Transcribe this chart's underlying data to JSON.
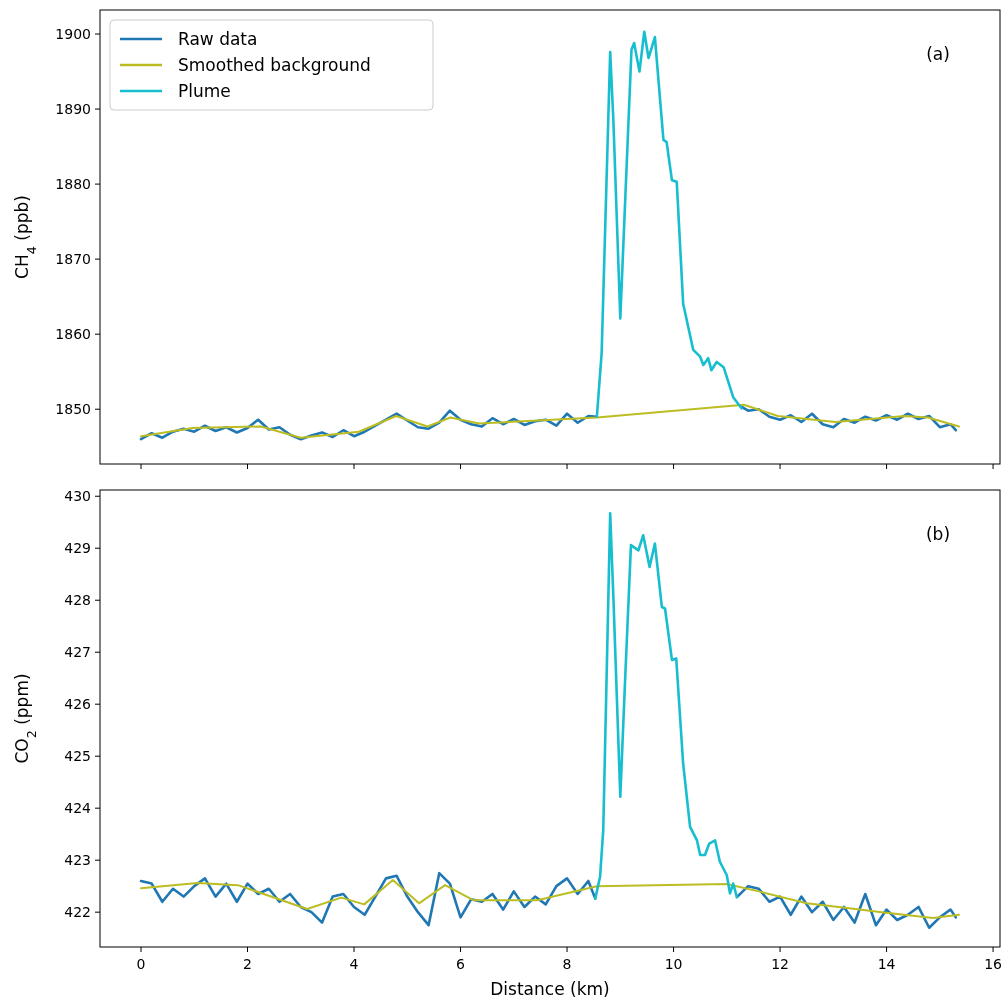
{
  "chart_data": [
    {
      "type": "line",
      "ylabel": "CH$_{4}$ (ppb)",
      "annotations": [
        "(a)"
      ],
      "xlim": [
        -0.77,
        16.13
      ],
      "xticks": [
        0,
        2,
        4,
        6,
        8,
        10,
        12,
        14,
        16
      ],
      "ylim": [
        1842.7,
        1903.2
      ],
      "yticks": [
        1850,
        1860,
        1870,
        1880,
        1890,
        1900
      ],
      "tick_labels": "y",
      "legend": "top left",
      "series": [
        {
          "name": "Raw data",
          "color": "#1f77b4",
          "x": [
            0,
            0.2,
            0.4,
            0.6,
            0.8,
            1.0,
            1.2,
            1.4,
            1.6,
            1.8,
            2.0,
            2.2,
            2.4,
            2.6,
            2.8,
            3.0,
            3.2,
            3.4,
            3.6,
            3.8,
            4.0,
            4.2,
            4.4,
            4.6,
            4.8,
            5.0,
            5.2,
            5.4,
            5.6,
            5.8,
            6.0,
            6.2,
            6.4,
            6.6,
            6.8,
            7.0,
            7.2,
            7.4,
            7.6,
            7.8,
            8.0,
            8.2,
            8.4,
            8.56,
            10,
            11.28,
            11.4,
            11.6,
            11.8,
            12.0,
            12.2,
            12.4,
            12.6,
            12.8,
            13.0,
            13.2,
            13.4,
            13.6,
            13.8,
            14.0,
            14.2,
            14.4,
            14.6,
            14.8,
            15.0,
            15.2,
            15.3
          ],
          "values": [
            1846.0,
            1846.8,
            1846.2,
            1847.0,
            1847.4,
            1847.0,
            1847.8,
            1847.1,
            1847.6,
            1846.9,
            1847.5,
            1848.6,
            1847.3,
            1847.6,
            1846.6,
            1846.0,
            1846.5,
            1846.9,
            1846.3,
            1847.2,
            1846.4,
            1847.0,
            1847.8,
            1848.6,
            1849.4,
            1848.5,
            1847.6,
            1847.4,
            1848.2,
            1849.8,
            1848.6,
            1848.0,
            1847.7,
            1848.8,
            1848.0,
            1848.7,
            1847.9,
            1848.4,
            1848.6,
            1847.8,
            1849.4,
            1848.2,
            1849.1,
            1849.0,
            null,
            1850.3,
            1849.8,
            1850.0,
            1849.0,
            1848.6,
            1849.2,
            1848.3,
            1849.4,
            1848.0,
            1847.6,
            1848.7,
            1848.2,
            1849.0,
            1848.5,
            1849.2,
            1848.6,
            1849.4,
            1848.7,
            1849.1,
            1847.6,
            1848.0,
            1847.2
          ]
        },
        {
          "name": "Smoothed background",
          "color": "#bcbd22",
          "x": [
            0,
            0.97,
            2.25,
            3.0,
            4.09,
            4.79,
            5.38,
            5.81,
            6.35,
            7.44,
            8.56,
            11.32,
            11.96,
            13.04,
            14.34,
            14.78,
            15.36
          ],
          "values": [
            1846.4,
            1847.5,
            1847.7,
            1846.2,
            1847.0,
            1849.1,
            1847.7,
            1848.9,
            1848.1,
            1848.5,
            1848.9,
            1850.6,
            1849.1,
            1848.3,
            1849.1,
            1848.9,
            1847.7
          ]
        },
        {
          "name": "Plume",
          "color": "#17becf",
          "x": [
            8.56,
            8.65,
            8.81,
            8.87,
            9.0,
            9.09,
            9.21,
            9.26,
            9.36,
            9.45,
            9.53,
            9.65,
            9.68,
            9.81,
            9.87,
            9.97,
            10.06,
            10.18,
            10.37,
            10.5,
            10.56,
            10.65,
            10.71,
            10.81,
            10.94,
            11.12,
            11.28
          ],
          "values": [
            1849.0,
            1857.5,
            1897.6,
            1888.5,
            1862.1,
            1877.5,
            1897.9,
            1898.8,
            1895.0,
            1900.3,
            1896.8,
            1899.6,
            1897.0,
            1885.9,
            1885.6,
            1880.5,
            1880.3,
            1864.1,
            1857.9,
            1857.0,
            1855.9,
            1856.8,
            1855.2,
            1856.3,
            1855.6,
            1851.6,
            1850.1
          ]
        }
      ]
    },
    {
      "type": "line",
      "xlabel": "Distance (km)",
      "ylabel": "CO$_{2}$ (ppm)",
      "annotations": [
        "(b)"
      ],
      "xlim": [
        -0.77,
        16.13
      ],
      "xticks": [
        0,
        2,
        4,
        6,
        8,
        10,
        12,
        14,
        16
      ],
      "ylim": [
        421.33,
        430.12
      ],
      "yticks": [
        422,
        423,
        424,
        425,
        426,
        427,
        428,
        429,
        430
      ],
      "series": [
        {
          "color": "#1f77b4",
          "x": [
            0,
            0.2,
            0.4,
            0.6,
            0.8,
            1.0,
            1.2,
            1.4,
            1.6,
            1.8,
            2.0,
            2.2,
            2.4,
            2.6,
            2.8,
            3.0,
            3.2,
            3.4,
            3.6,
            3.8,
            4.0,
            4.2,
            4.4,
            4.6,
            4.8,
            5.0,
            5.2,
            5.4,
            5.6,
            5.8,
            6.0,
            6.2,
            6.4,
            6.6,
            6.8,
            7.0,
            7.2,
            7.4,
            7.6,
            7.8,
            8.0,
            8.2,
            8.4,
            8.53,
            10,
            11.19,
            11.4,
            11.6,
            11.8,
            12.0,
            12.2,
            12.4,
            12.6,
            12.8,
            13.0,
            13.2,
            13.4,
            13.6,
            13.8,
            14.0,
            14.2,
            14.4,
            14.6,
            14.8,
            15.0,
            15.2,
            15.3
          ],
          "values": [
            422.6,
            422.55,
            422.2,
            422.45,
            422.3,
            422.5,
            422.65,
            422.3,
            422.55,
            422.2,
            422.55,
            422.35,
            422.45,
            422.2,
            422.35,
            422.1,
            422.0,
            421.8,
            422.3,
            422.35,
            422.1,
            421.95,
            422.3,
            422.65,
            422.7,
            422.3,
            422.0,
            421.75,
            422.75,
            422.55,
            421.9,
            422.25,
            422.2,
            422.35,
            422.05,
            422.4,
            422.1,
            422.3,
            422.15,
            422.5,
            422.65,
            422.35,
            422.6,
            422.26,
            null,
            422.29,
            422.5,
            422.45,
            422.2,
            422.3,
            421.95,
            422.3,
            422.0,
            422.2,
            421.85,
            422.1,
            421.8,
            422.35,
            421.75,
            422.05,
            421.85,
            421.95,
            422.1,
            421.7,
            421.9,
            422.05,
            421.9
          ]
        },
        {
          "color": "#bcbd22",
          "x": [
            0,
            1.06,
            1.82,
            3.12,
            3.76,
            4.19,
            4.73,
            5.22,
            5.71,
            6.24,
            7.44,
            8.56,
            11.0,
            11.64,
            12.5,
            13.26,
            13.91,
            14.87,
            15.36
          ],
          "values": [
            422.46,
            422.56,
            422.52,
            422.06,
            422.28,
            422.15,
            422.62,
            422.17,
            422.52,
            422.23,
            422.23,
            422.5,
            422.54,
            422.39,
            422.17,
            422.08,
            422.0,
            421.89,
            421.95
          ]
        },
        {
          "color": "#17becf",
          "x": [
            8.53,
            8.62,
            8.68,
            8.81,
            8.87,
            9.0,
            9.09,
            9.2,
            9.34,
            9.43,
            9.55,
            9.65,
            9.78,
            9.84,
            9.97,
            10.05,
            10.18,
            10.31,
            10.44,
            10.5,
            10.59,
            10.67,
            10.78,
            10.87,
            11.0,
            11.06,
            11.12,
            11.19
          ],
          "values": [
            422.26,
            422.68,
            423.58,
            429.67,
            428.06,
            424.22,
            426.46,
            429.06,
            428.96,
            429.25,
            428.64,
            429.09,
            427.87,
            427.84,
            426.85,
            426.88,
            424.86,
            423.64,
            423.38,
            423.1,
            423.1,
            423.32,
            423.38,
            422.97,
            422.71,
            422.36,
            422.55,
            422.29
          ]
        }
      ]
    }
  ]
}
